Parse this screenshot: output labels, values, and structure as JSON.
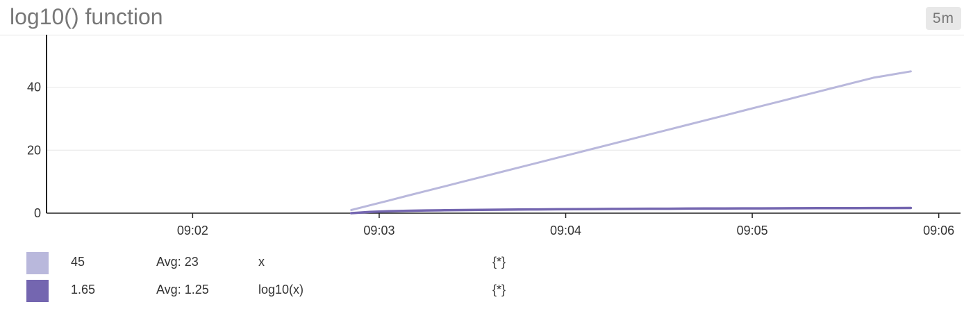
{
  "panel": {
    "title": "log10() function",
    "time_range": "5m"
  },
  "colors": {
    "series_x": "#b9b8dc",
    "series_log10": "#7466b0",
    "gridline": "#e6e6e6",
    "axis": "#222222"
  },
  "chart_data": {
    "type": "line",
    "title": "log10() function",
    "xlabel": "",
    "ylabel": "",
    "x_tick_labels": [
      "09:02",
      "09:03",
      "09:04",
      "09:05",
      "09:06"
    ],
    "y_tick_labels": [
      "0",
      "20",
      "40"
    ],
    "xlim": [
      "09:01:13",
      "09:06:07"
    ],
    "ylim": [
      0,
      54
    ],
    "grid": "horizontal",
    "legend": "below",
    "series": [
      {
        "name": "x",
        "color": "#b9b8dc",
        "x": [
          "09:02:51",
          "09:02:57",
          "09:03:03",
          "09:03:09",
          "09:03:15",
          "09:03:21",
          "09:03:27",
          "09:03:33",
          "09:03:39",
          "09:03:45",
          "09:03:51",
          "09:03:57",
          "09:04:03",
          "09:04:09",
          "09:04:15",
          "09:04:21",
          "09:04:27",
          "09:04:33",
          "09:04:39",
          "09:04:45",
          "09:04:51",
          "09:04:57",
          "09:05:03",
          "09:05:09",
          "09:05:15",
          "09:05:21",
          "09:05:27",
          "09:05:33",
          "09:05:39",
          "09:05:45",
          "09:05:51"
        ],
        "values": [
          1,
          2.5,
          4,
          5.5,
          7,
          8.5,
          10,
          11.5,
          13,
          14.5,
          16,
          17.5,
          19,
          20.5,
          22,
          23.5,
          25,
          26.5,
          28,
          29.5,
          31,
          32.5,
          34,
          35.5,
          37,
          38.5,
          40,
          41.5,
          43,
          44,
          45
        ]
      },
      {
        "name": "log10(x)",
        "color": "#7466b0",
        "x": [
          "09:02:51",
          "09:02:57",
          "09:03:03",
          "09:03:09",
          "09:03:15",
          "09:03:21",
          "09:03:27",
          "09:03:33",
          "09:03:39",
          "09:03:45",
          "09:03:51",
          "09:03:57",
          "09:04:03",
          "09:04:09",
          "09:04:15",
          "09:04:21",
          "09:04:27",
          "09:04:33",
          "09:04:39",
          "09:04:45",
          "09:04:51",
          "09:04:57",
          "09:05:03",
          "09:05:09",
          "09:05:15",
          "09:05:21",
          "09:05:27",
          "09:05:33",
          "09:05:39",
          "09:05:45",
          "09:05:51"
        ],
        "values": [
          0,
          0.4,
          0.6,
          0.74,
          0.85,
          0.93,
          1.0,
          1.06,
          1.11,
          1.16,
          1.2,
          1.24,
          1.28,
          1.31,
          1.34,
          1.37,
          1.4,
          1.42,
          1.45,
          1.47,
          1.49,
          1.51,
          1.53,
          1.55,
          1.57,
          1.59,
          1.6,
          1.62,
          1.63,
          1.64,
          1.65
        ]
      }
    ]
  },
  "legend": [
    {
      "value": "45",
      "avg": "Avg: 23",
      "name": "x",
      "scope": "{*}",
      "color": "#b9b8dc"
    },
    {
      "value": "1.65",
      "avg": "Avg: 1.25",
      "name": "log10(x)",
      "scope": "{*}",
      "color": "#7466b0"
    }
  ]
}
